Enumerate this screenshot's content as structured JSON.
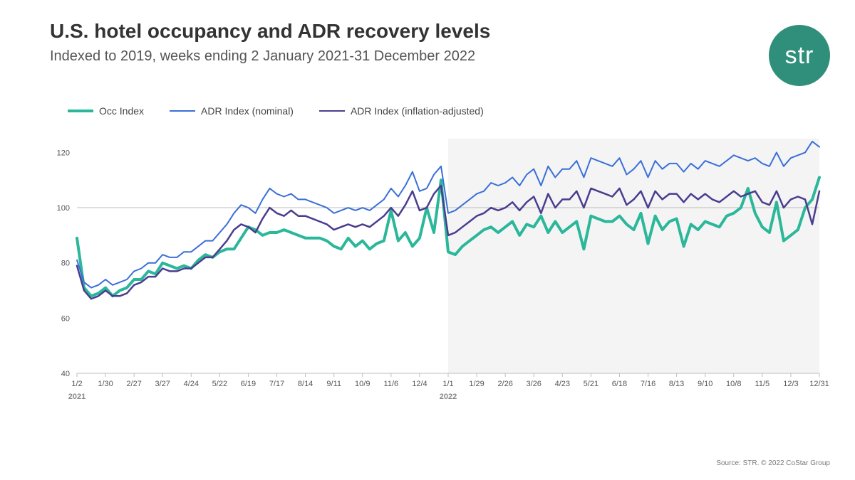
{
  "title": "U.S. hotel occupancy and ADR recovery levels",
  "subtitle": "Indexed to 2019, weeks ending 2 January 2021-31 December 2022",
  "logo_text": "str",
  "logo_bg": "#2f8f7a",
  "footer": "Source: STR. © 2022 CoStar Group",
  "chart": {
    "type": "line",
    "background_color": "#ffffff",
    "shade_region": {
      "from_index": 52,
      "to_index": 104,
      "fill": "#f4f4f4"
    },
    "ylim": [
      40,
      125
    ],
    "ytick_step": 20,
    "yticks": [
      40,
      60,
      80,
      100,
      120
    ],
    "reference_line": {
      "y": 100,
      "color": "#bdbdbd",
      "width": 1
    },
    "grid_color": "#bdbdbd",
    "axis_text_color": "#555555",
    "axis_fontsize": 11,
    "x_labels": [
      "1/2",
      "1/30",
      "2/27",
      "3/27",
      "4/24",
      "5/22",
      "6/19",
      "7/17",
      "8/14",
      "9/11",
      "10/9",
      "11/6",
      "12/4",
      "1/1",
      "1/29",
      "2/26",
      "3/26",
      "4/23",
      "5/21",
      "6/18",
      "7/16",
      "8/13",
      "9/10",
      "10/8",
      "11/5",
      "12/3",
      "12/31"
    ],
    "x_label_step": 4,
    "year_markers": [
      {
        "index": 0,
        "label": "2021"
      },
      {
        "index": 13,
        "label": "2022"
      }
    ],
    "series": [
      {
        "name": "Occ Index",
        "color": "#2bb79a",
        "width": 4,
        "values": [
          89,
          71,
          68,
          69,
          71,
          68,
          70,
          71,
          74,
          74,
          77,
          76,
          80,
          79,
          78,
          79,
          78,
          81,
          83,
          82,
          84,
          85,
          85,
          89,
          93,
          92,
          90,
          91,
          91,
          92,
          91,
          90,
          89,
          89,
          89,
          88,
          86,
          85,
          89,
          86,
          88,
          85,
          87,
          88,
          99,
          88,
          91,
          86,
          89,
          100,
          91,
          110,
          84,
          83,
          86,
          88,
          90,
          92,
          93,
          91,
          93,
          95,
          90,
          94,
          93,
          97,
          91,
          95,
          91,
          93,
          95,
          85,
          97,
          96,
          95,
          95,
          97,
          94,
          92,
          98,
          87,
          97,
          92,
          95,
          96,
          86,
          94,
          92,
          95,
          94,
          93,
          97,
          98,
          100,
          107,
          98,
          93,
          91,
          102,
          88,
          90,
          92,
          100,
          103,
          111
        ]
      },
      {
        "name": "ADR Index (nominal)",
        "color": "#3a6fd8",
        "width": 2,
        "values": [
          81,
          73,
          71,
          72,
          74,
          72,
          73,
          74,
          77,
          78,
          80,
          80,
          83,
          82,
          82,
          84,
          84,
          86,
          88,
          88,
          91,
          94,
          98,
          101,
          100,
          98,
          103,
          107,
          105,
          104,
          105,
          103,
          103,
          102,
          101,
          100,
          98,
          99,
          100,
          99,
          100,
          99,
          101,
          103,
          107,
          104,
          108,
          113,
          106,
          107,
          112,
          115,
          98,
          99,
          101,
          103,
          105,
          106,
          109,
          108,
          109,
          111,
          108,
          112,
          114,
          108,
          115,
          111,
          114,
          114,
          117,
          111,
          118,
          117,
          116,
          115,
          118,
          112,
          114,
          117,
          111,
          117,
          114,
          116,
          116,
          113,
          116,
          114,
          117,
          116,
          115,
          117,
          119,
          118,
          117,
          118,
          116,
          115,
          120,
          115,
          118,
          119,
          120,
          124,
          122
        ]
      },
      {
        "name": "ADR Index (inflation-adjusted)",
        "color": "#4a3d8f",
        "width": 2.5,
        "values": [
          79,
          70,
          67,
          68,
          70,
          68,
          68,
          69,
          72,
          73,
          75,
          75,
          78,
          77,
          77,
          78,
          78,
          80,
          82,
          82,
          85,
          88,
          92,
          94,
          93,
          91,
          96,
          100,
          98,
          97,
          99,
          97,
          97,
          96,
          95,
          94,
          92,
          93,
          94,
          93,
          94,
          93,
          95,
          97,
          100,
          97,
          101,
          106,
          99,
          100,
          105,
          108,
          90,
          91,
          93,
          95,
          97,
          98,
          100,
          99,
          100,
          102,
          99,
          102,
          104,
          98,
          105,
          100,
          103,
          103,
          106,
          100,
          107,
          106,
          105,
          104,
          107,
          101,
          103,
          106,
          100,
          106,
          103,
          105,
          105,
          102,
          105,
          103,
          105,
          103,
          102,
          104,
          106,
          104,
          105,
          106,
          102,
          101,
          106,
          100,
          103,
          104,
          103,
          94,
          106
        ]
      }
    ]
  }
}
